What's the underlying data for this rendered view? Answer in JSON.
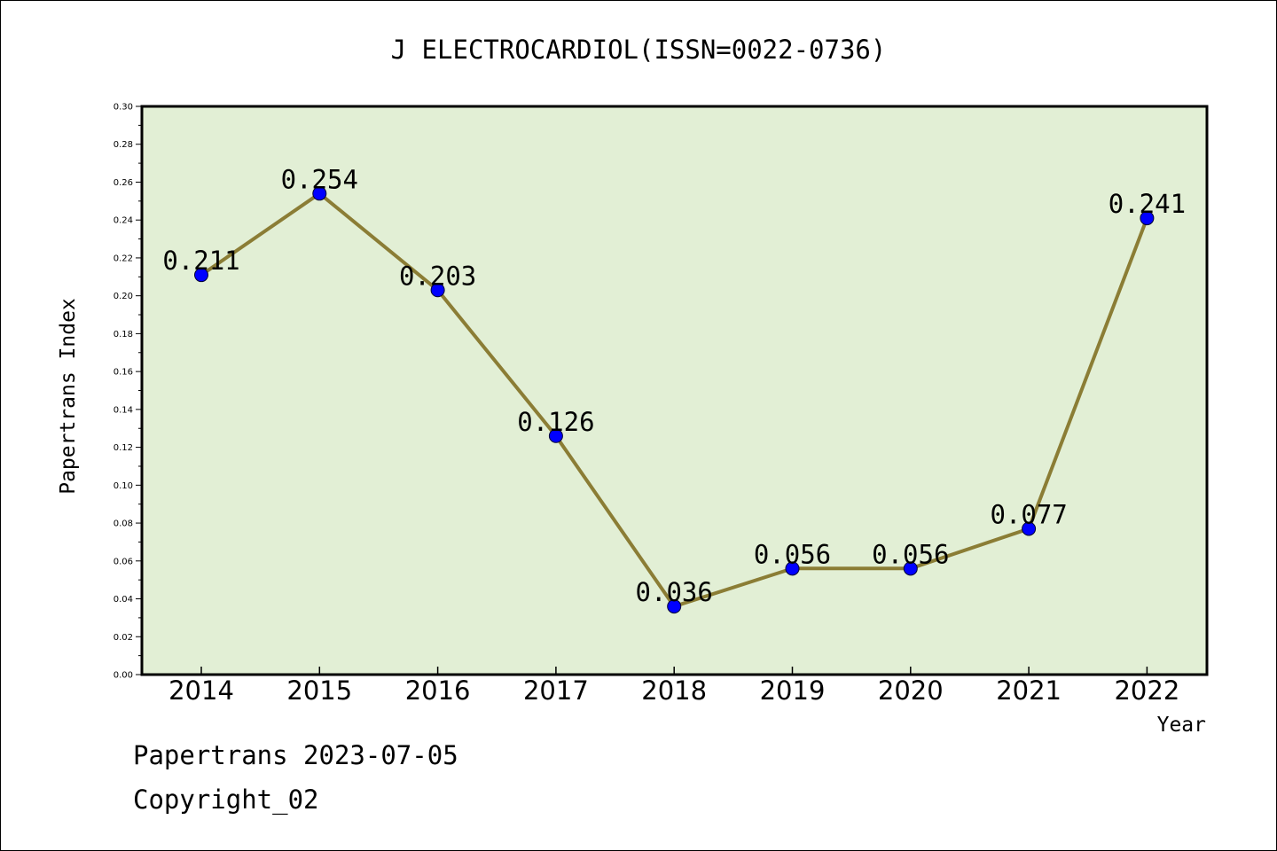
{
  "chart_data": {
    "type": "line",
    "title": "J ELECTROCARDIOL(ISSN=0022-0736)",
    "xlabel": "Year",
    "ylabel": "Papertrans Index",
    "categories": [
      "2014",
      "2015",
      "2016",
      "2017",
      "2018",
      "2019",
      "2020",
      "2021",
      "2022"
    ],
    "series": [
      {
        "values": [
          0.211,
          0.254,
          0.203,
          0.126,
          0.036,
          0.056,
          0.056,
          0.077,
          0.241
        ]
      }
    ],
    "data_labels": [
      "0.211",
      "0.254",
      "0.203",
      "0.126",
      "0.036",
      "0.056",
      "0.056",
      "0.077",
      "0.241"
    ],
    "ylim": [
      0,
      0.3
    ],
    "y_ticks": [
      "0.00",
      "0.02",
      "0.04",
      "0.06",
      "0.08",
      "0.10",
      "0.12",
      "0.14",
      "0.16",
      "0.18",
      "0.20",
      "0.22",
      "0.24",
      "0.26",
      "0.28",
      "0.30"
    ],
    "grid": false,
    "legend": "none",
    "colors": {
      "plot_background": "#e2efd5",
      "line": "#8b7d35",
      "marker": "#0000ff"
    }
  },
  "footer": {
    "line1": "Papertrans 2023-07-05",
    "line2": "Copyright_02"
  }
}
